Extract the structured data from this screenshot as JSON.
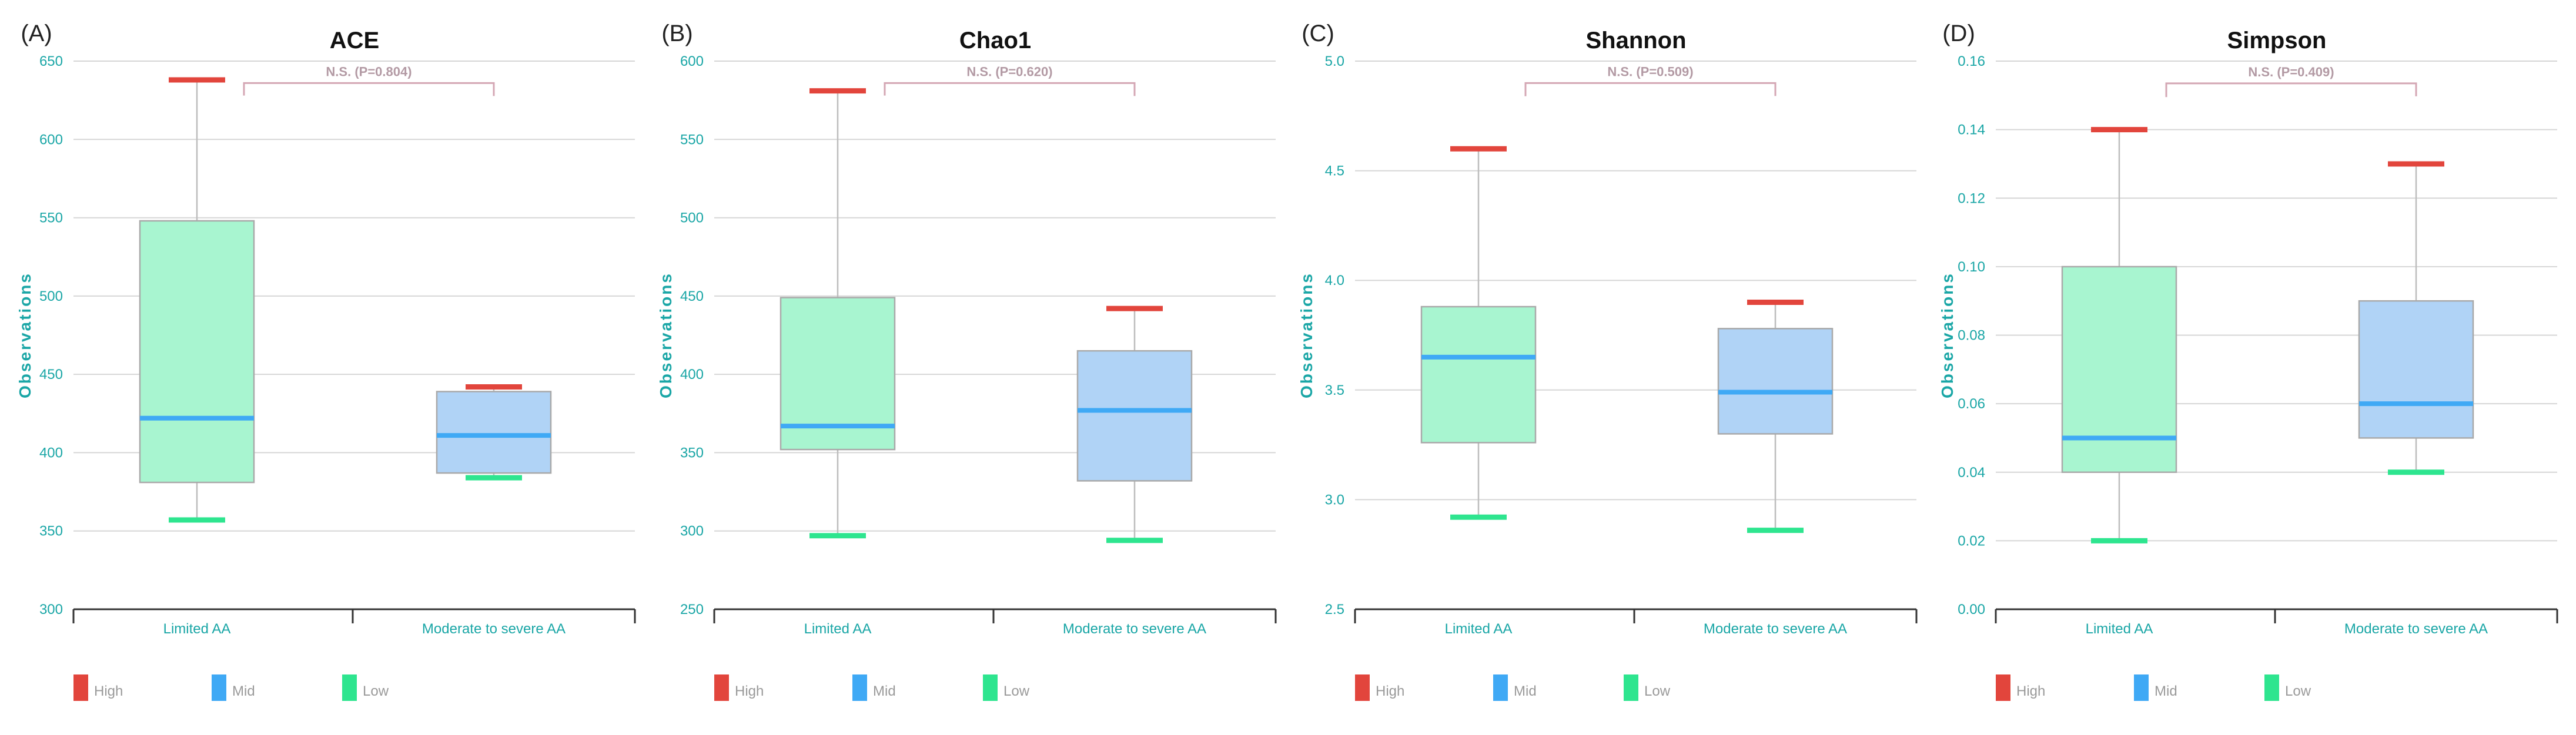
{
  "colors": {
    "high": "#e2453c",
    "mid": "#3fa9f5",
    "low": "#2ee58f",
    "box_limited": "#a8f5d0",
    "box_moderate": "#b0d3f6",
    "bracket": "#d4a7b4",
    "axis_text": "#1aa6a6",
    "grid": "#d6d6d6",
    "whisker": "#bdbdbd"
  },
  "legend": [
    {
      "key": "high",
      "label": "High"
    },
    {
      "key": "mid",
      "label": "Mid"
    },
    {
      "key": "low",
      "label": "Low"
    }
  ],
  "chart_data": [
    {
      "type": "box",
      "panel": "(A)",
      "title": "ACE",
      "ylabel": "Observations",
      "ylim": [
        300,
        650
      ],
      "yticks": [
        "300",
        "350",
        "400",
        "450",
        "500",
        "550",
        "600",
        "650"
      ],
      "categories": [
        "Limited AA",
        "Moderate to severe AA"
      ],
      "boxes": [
        {
          "category": "Limited AA",
          "high": 638,
          "q3": 548,
          "median": 422,
          "q1": 381,
          "low": 357
        },
        {
          "category": "Moderate to severe AA",
          "high": 442,
          "q3": 439,
          "median": 411,
          "q1": 387,
          "low": 384
        }
      ],
      "annotation": "N.S. (P=0.804)",
      "bracket_y": 636,
      "bracket_drop_y": 628
    },
    {
      "type": "box",
      "panel": "(B)",
      "title": "Chao1",
      "ylabel": "Observations",
      "ylim": [
        250,
        600
      ],
      "yticks": [
        "250",
        "300",
        "350",
        "400",
        "450",
        "500",
        "550",
        "600"
      ],
      "categories": [
        "Limited AA",
        "Moderate to severe AA"
      ],
      "boxes": [
        {
          "category": "Limited AA",
          "high": 581,
          "q3": 449,
          "median": 367,
          "q1": 352,
          "low": 297
        },
        {
          "category": "Moderate to severe AA",
          "high": 442,
          "q3": 415,
          "median": 377,
          "q1": 332,
          "low": 294
        }
      ],
      "annotation": "N.S. (P=0.620)",
      "bracket_y": 586,
      "bracket_drop_y": 578
    },
    {
      "type": "box",
      "panel": "(C)",
      "title": "Shannon",
      "ylabel": "Observations",
      "ylim": [
        2.5,
        5.0
      ],
      "yticks": [
        "2.5",
        "3.0",
        "3.5",
        "4.0",
        "4.5",
        "5.0"
      ],
      "categories": [
        "Limited AA",
        "Moderate to severe AA"
      ],
      "boxes": [
        {
          "category": "Limited AA",
          "high": 4.6,
          "q3": 3.88,
          "median": 3.65,
          "q1": 3.26,
          "low": 2.92
        },
        {
          "category": "Moderate to severe AA",
          "high": 3.9,
          "q3": 3.78,
          "median": 3.49,
          "q1": 3.3,
          "low": 2.86
        }
      ],
      "annotation": "N.S. (P=0.509)",
      "bracket_y": 4.9,
      "bracket_drop_y": 4.84
    },
    {
      "type": "box",
      "panel": "(D)",
      "title": "Simpson",
      "ylabel": "Observations",
      "ylim": [
        0.0,
        0.16
      ],
      "yticks": [
        "0.00",
        "0.02",
        "0.04",
        "0.06",
        "0.08",
        "0.10",
        "0.12",
        "0.14",
        "0.16"
      ],
      "categories": [
        "Limited AA",
        "Moderate to severe AA"
      ],
      "boxes": [
        {
          "category": "Limited AA",
          "high": 0.14,
          "q3": 0.1,
          "median": 0.05,
          "q1": 0.04,
          "low": 0.02
        },
        {
          "category": "Moderate to severe AA",
          "high": 0.13,
          "q3": 0.09,
          "median": 0.06,
          "q1": 0.05,
          "low": 0.04
        }
      ],
      "annotation": "N.S. (P=0.409)",
      "bracket_y": 0.1535,
      "bracket_drop_y": 0.1495
    }
  ]
}
